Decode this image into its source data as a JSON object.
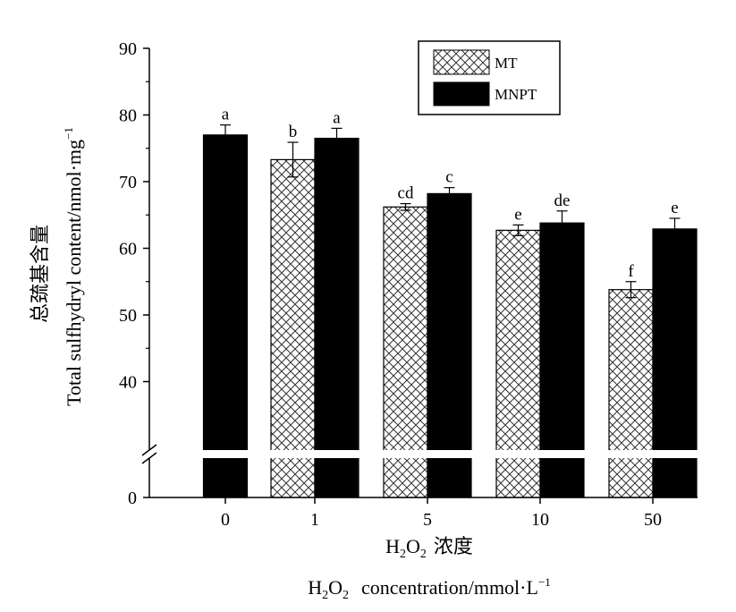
{
  "chart_data": {
    "type": "bar",
    "categories": [
      "0",
      "1",
      "5",
      "10",
      "50"
    ],
    "series": [
      {
        "name": "MT",
        "values": [
          null,
          73.3,
          66.2,
          62.7,
          53.8
        ],
        "errors": [
          null,
          2.6,
          0.5,
          0.8,
          1.2
        ],
        "letters": [
          "",
          "b",
          "cd",
          "e",
          "f"
        ]
      },
      {
        "name": "MNPT",
        "values": [
          77.0,
          76.5,
          68.2,
          63.8,
          62.9
        ],
        "errors": [
          1.5,
          1.5,
          0.9,
          1.8,
          1.6
        ],
        "letters": [
          "a",
          "a",
          "c",
          "de",
          "e"
        ]
      }
    ],
    "yticks": [
      0,
      40,
      50,
      60,
      70,
      80,
      90
    ],
    "ylim": [
      0,
      90
    ],
    "y_break": [
      0,
      30
    ],
    "ylabel_cn": "总巯基含量",
    "ylabel_en": "Total  sulfhydryl  content/nmol·mg",
    "ylabel_en_sup": "−1",
    "xlabel_cn": "浓度",
    "xlabel_en": "concentration/mmol·L",
    "xlabel_en_sup": "−1",
    "xlabel_h": "H",
    "xlabel_2a": "2",
    "xlabel_o": "O",
    "xlabel_2b": "2",
    "legend_position": "top-right",
    "colors": {
      "MNPT": "#000000",
      "MT_pattern": "crosshatch",
      "axis": "#000000"
    }
  }
}
